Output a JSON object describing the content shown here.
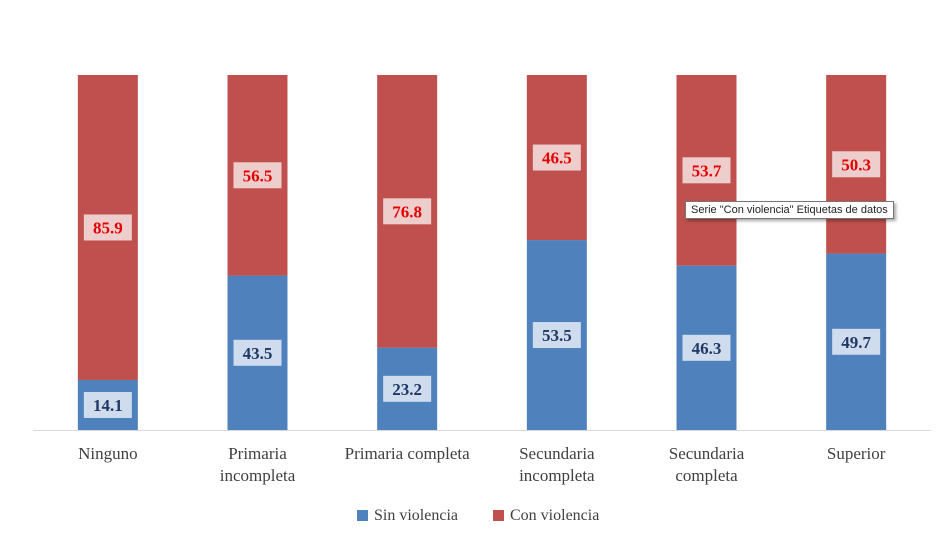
{
  "chart_data": {
    "type": "bar",
    "stacked": true,
    "normalized_percent": true,
    "categories": [
      [
        "Ninguno"
      ],
      [
        "Primaria",
        "incompleta"
      ],
      [
        "Primaria completa"
      ],
      [
        "Secundaria",
        "incompleta"
      ],
      [
        "Secundaria",
        "completa"
      ],
      [
        "Superior"
      ]
    ],
    "series": [
      {
        "name": "Sin violencia",
        "color": "#4F81BD",
        "label_color": "#1F3864",
        "values": [
          14.1,
          43.5,
          23.2,
          53.5,
          46.3,
          49.7
        ]
      },
      {
        "name": "Con violencia",
        "color": "#C0504D",
        "label_color": "#E30000",
        "values": [
          85.9,
          56.5,
          76.8,
          46.5,
          53.7,
          50.3
        ]
      }
    ],
    "title": "",
    "xlabel": "",
    "ylabel": "",
    "ylim": [
      0,
      100
    ],
    "grid": false,
    "legend": "bottom"
  },
  "tooltip": {
    "text": "Serie \"Con violencia\" Etiquetas de datos"
  }
}
